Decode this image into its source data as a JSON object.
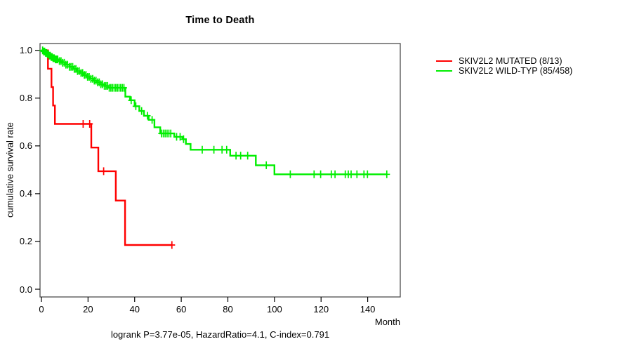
{
  "title": "Time to Death",
  "caption": "logrank P=3.77e-05, HazardRatio=4.1, C-index=0.791",
  "axes": {
    "x": {
      "label": "Month",
      "tick_labels": [
        "0",
        "20",
        "40",
        "60",
        "80",
        "100",
        "120",
        "140"
      ],
      "tick_months": [
        0,
        20,
        40,
        60,
        80,
        100,
        120,
        140
      ]
    },
    "y": {
      "label": "cumulative survival rate",
      "tick_labels": [
        "0.0",
        "0.2",
        "0.4",
        "0.6",
        "0.8",
        "1.0"
      ],
      "tick_values": [
        0,
        0.2,
        0.4,
        0.6,
        0.8,
        1.0
      ]
    }
  },
  "legend": [
    {
      "label": "SKIV2L2 MUTATED (8/13)",
      "color": "#ff0000"
    },
    {
      "label": "SKIV2L2 WILD-TYP (85/458)",
      "color": "#00ee00"
    }
  ],
  "colors": {
    "mutated": "#ff0000",
    "wildtype": "#00ee00",
    "box": "#4d4d4d",
    "tick": "#000000",
    "background": "#ffffff"
  },
  "chart_data": {
    "type": "line",
    "subtype": "kaplan-meier-survival",
    "title": "Time to Death",
    "xlabel": "Month",
    "ylabel": "cumulative survival rate",
    "xlim": [
      0,
      154
    ],
    "ylim": [
      0.0,
      1.0
    ],
    "grid": false,
    "legend_position": "outside-right",
    "series": [
      {
        "name": "SKIV2L2 MUTATED (8/13)",
        "color": "#ff0000",
        "n_events": 8,
        "n_total": 13,
        "steps": [
          [
            0,
            1.0
          ],
          [
            2.8,
            0.923
          ],
          [
            4.3,
            0.846
          ],
          [
            5.0,
            0.769
          ],
          [
            5.8,
            0.692
          ],
          [
            21.4,
            0.593
          ],
          [
            24.4,
            0.494
          ],
          [
            31.9,
            0.371
          ],
          [
            35.9,
            0.185
          ]
        ],
        "end_month": 56.0,
        "censor_months": [
          17.9,
          20.7,
          26.7,
          56.0
        ]
      },
      {
        "name": "SKIV2L2 WILD-TYP (85/458)",
        "color": "#00ee00",
        "n_events": 85,
        "n_total": 458,
        "steps": [
          [
            0,
            1.0
          ],
          [
            0.8,
            0.995
          ],
          [
            1.6,
            0.989
          ],
          [
            2.4,
            0.984
          ],
          [
            3.2,
            0.978
          ],
          [
            4,
            0.972
          ],
          [
            5,
            0.967
          ],
          [
            6,
            0.962
          ],
          [
            7.5,
            0.955
          ],
          [
            9,
            0.948
          ],
          [
            10.5,
            0.94
          ],
          [
            12,
            0.931
          ],
          [
            13.5,
            0.922
          ],
          [
            15,
            0.913
          ],
          [
            16.5,
            0.905
          ],
          [
            18,
            0.897
          ],
          [
            19.5,
            0.889
          ],
          [
            21,
            0.881
          ],
          [
            22.5,
            0.873
          ],
          [
            24,
            0.866
          ],
          [
            25.5,
            0.858
          ],
          [
            27,
            0.851
          ],
          [
            28.5,
            0.843
          ],
          [
            36,
            0.806
          ],
          [
            38,
            0.791
          ],
          [
            40,
            0.766
          ],
          [
            42,
            0.746
          ],
          [
            44,
            0.726
          ],
          [
            46,
            0.709
          ],
          [
            48.5,
            0.678
          ],
          [
            51,
            0.652
          ],
          [
            57,
            0.638
          ],
          [
            60.5,
            0.628
          ],
          [
            62,
            0.608
          ],
          [
            64,
            0.584
          ],
          [
            81,
            0.559
          ],
          [
            92,
            0.519
          ],
          [
            100,
            0.481
          ]
        ],
        "end_month": 148.4,
        "censor_months": [
          0.5,
          1,
          1.4,
          1.8,
          2.2,
          2.6,
          3,
          3.4,
          3.8,
          4.2,
          4.6,
          5,
          5.5,
          6,
          6.5,
          7,
          7.7,
          8.4,
          9.1,
          9.8,
          10.5,
          11.2,
          12,
          12.7,
          13.4,
          14.1,
          14.8,
          15.5,
          16.2,
          17,
          17.7,
          18.4,
          19.1,
          19.8,
          20.5,
          21.2,
          22,
          22.7,
          23.4,
          24.1,
          24.8,
          25.5,
          26.2,
          27,
          27.7,
          28.4,
          29.1,
          29.8,
          30.5,
          31.2,
          31.9,
          32.6,
          33.3,
          34,
          34.7,
          35.4,
          38.5,
          40.5,
          43,
          45.5,
          47.5,
          51.5,
          52.3,
          53.1,
          53.9,
          54.7,
          55.5,
          58,
          59.5,
          61,
          69,
          74,
          77.5,
          79.5,
          83.5,
          85.5,
          88.5,
          96.5,
          106.8,
          117,
          119.8,
          124.4,
          126,
          130.4,
          131.7,
          132.9,
          135.4,
          138.4,
          139.9,
          148.2
        ]
      }
    ]
  }
}
